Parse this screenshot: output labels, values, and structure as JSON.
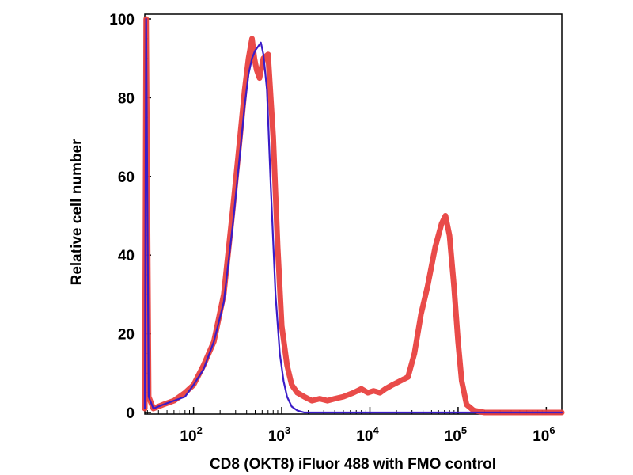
{
  "chart_data": {
    "type": "line",
    "title": "",
    "xlabel": "CD8 (OKT8) iFluor 488 with FMO control",
    "ylabel": "Relative cell number",
    "x_scale": "log",
    "xlim": [
      28,
      1500000
    ],
    "ylim": [
      0,
      100
    ],
    "x_ticks": [
      {
        "base": "10",
        "exp": "2",
        "value": 100
      },
      {
        "base": "10",
        "exp": "3",
        "value": 1000
      },
      {
        "base": "10",
        "exp": "4",
        "value": 10000
      },
      {
        "base": "10",
        "exp": "5",
        "value": 100000
      },
      {
        "base": "10",
        "exp": "6",
        "value": 1000000
      }
    ],
    "y_ticks": [
      "0",
      "20",
      "40",
      "60",
      "80",
      "100"
    ],
    "grid": false,
    "series": [
      {
        "name": "CD8 (OKT8) iFluor 488",
        "color": "#e8413f",
        "x": [
          28,
          29,
          31,
          35,
          45,
          60,
          80,
          100,
          130,
          170,
          220,
          280,
          330,
          380,
          420,
          460,
          490,
          520,
          560,
          620,
          700,
          800,
          900,
          1000,
          1150,
          1300,
          1500,
          1800,
          2200,
          2700,
          3300,
          4000,
          5000,
          6500,
          8000,
          9500,
          11000,
          13000,
          15000,
          18000,
          22000,
          27000,
          32000,
          38000,
          45000,
          55000,
          65000,
          72000,
          80000,
          90000,
          100000,
          110000,
          125000,
          150000,
          200000,
          300000,
          500000,
          1000000,
          1500000
        ],
        "values": [
          1,
          100,
          4,
          1,
          2,
          3,
          5,
          7,
          12,
          18,
          30,
          52,
          68,
          82,
          90,
          95,
          90,
          87,
          85,
          90,
          91,
          70,
          42,
          22,
          12,
          7,
          5,
          4,
          3,
          3.5,
          3,
          3.5,
          4,
          5,
          6,
          5,
          5.5,
          5,
          6,
          7,
          8,
          9,
          15,
          25,
          32,
          42,
          48,
          50,
          45,
          32,
          18,
          8,
          2,
          0.5,
          0,
          0,
          0,
          0,
          0
        ]
      },
      {
        "name": "FMO control",
        "color": "#3a1cc8",
        "x": [
          28,
          29,
          31,
          35,
          45,
          60,
          80,
          100,
          130,
          170,
          220,
          280,
          330,
          380,
          420,
          460,
          500,
          540,
          580,
          620,
          680,
          750,
          850,
          950,
          1050,
          1150,
          1300,
          1500,
          1800,
          2200,
          3000,
          5000,
          1500000
        ],
        "values": [
          1,
          100,
          4,
          1,
          2,
          3,
          4,
          7,
          11,
          18,
          28,
          48,
          64,
          78,
          86,
          90,
          92,
          93,
          94,
          91,
          82,
          58,
          30,
          15,
          8,
          4,
          1.5,
          0.5,
          0,
          0,
          0,
          0,
          0
        ]
      }
    ]
  }
}
